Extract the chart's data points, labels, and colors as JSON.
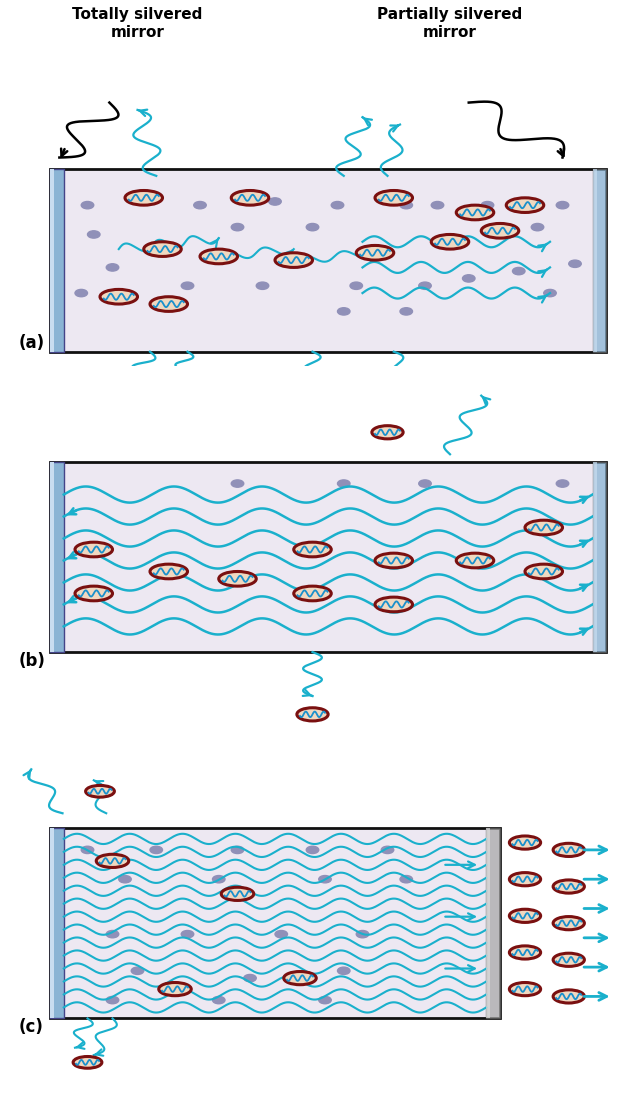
{
  "bg_color": "#ffffff",
  "chamber_bg": "#ede8f2",
  "chamber_border": "#111111",
  "mirror_blue": "#8ab4d4",
  "mirror_gray": "#aaaaaa",
  "wave_color": "#1ab0cc",
  "atom_outer": "#7a1010",
  "atom_inner": "#f0d8c0",
  "atom_wave": "#1a90cc",
  "dot_color": "#9090b8",
  "arrow_color": "#1ab0cc",
  "black": "#000000",
  "title_totally": "Totally silvered\nmirror",
  "title_partially": "Partially silvered\nmirror",
  "label_a": "(a)",
  "label_b": "(b)",
  "label_c": "(c)"
}
